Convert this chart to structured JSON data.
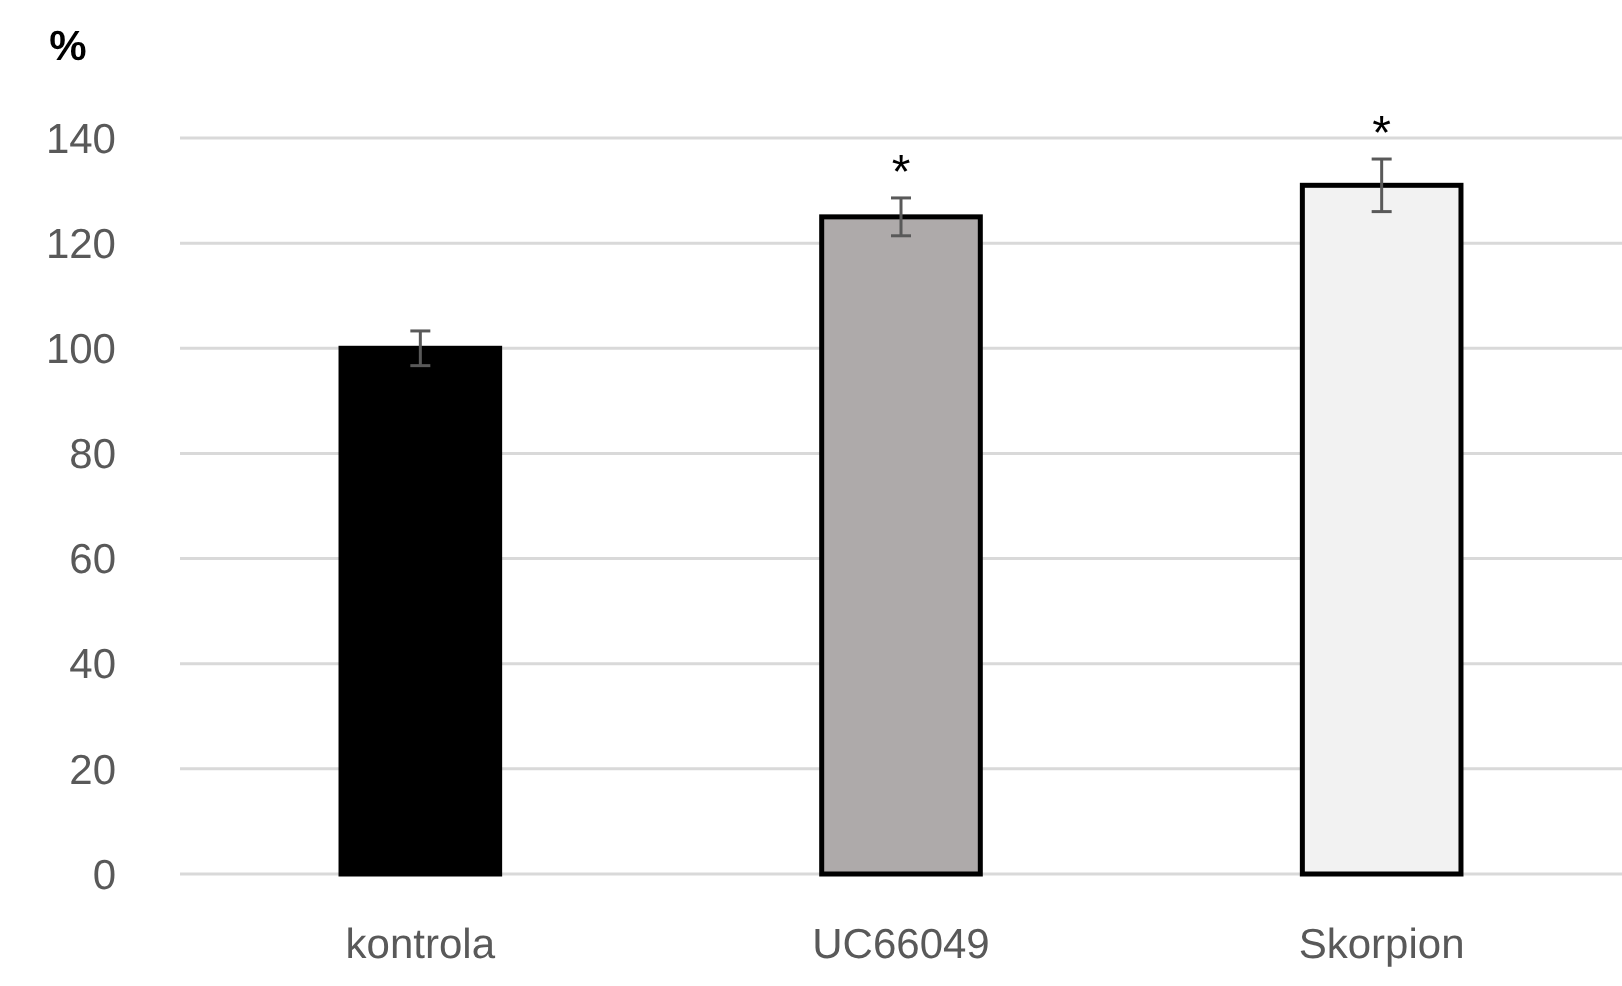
{
  "chart_data": {
    "type": "bar",
    "ylabel": "%",
    "categories": [
      "kontrola",
      "UC66049",
      "Skorpion"
    ],
    "values": [
      100,
      125,
      131
    ],
    "colors": [
      "#000000",
      "#aeaaaa",
      "#f2f2f2"
    ],
    "errors": [
      3.3,
      3.6,
      5
    ],
    "ylim": [
      0,
      140
    ],
    "yticks": [
      0,
      20,
      40,
      60,
      80,
      100,
      120,
      140
    ],
    "grid": "y",
    "annotations": [
      "*",
      "*"
    ]
  }
}
